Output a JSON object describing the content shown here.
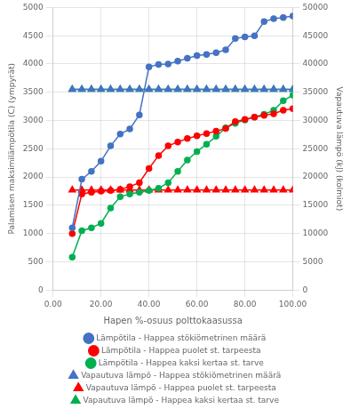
{
  "chart_data": {
    "type": "line",
    "xlabel": "Hapen %-osuus polttokaasussа",
    "ylabel": "Palamisen maksimilämpötila (C) (ympyrät)",
    "y2label": "Vapautuva lämpö (kJ) (kolmiot)",
    "x": [
      8,
      12,
      16,
      20,
      24,
      28,
      32,
      36,
      40,
      44,
      48,
      52,
      56,
      60,
      64,
      68,
      72,
      76,
      80,
      84,
      88,
      92,
      96,
      100
    ],
    "xlim": [
      0,
      100
    ],
    "xticks": [
      {
        "value": 0,
        "label": "0.00"
      },
      {
        "value": 20,
        "label": "20.00"
      },
      {
        "value": 40,
        "label": "40.00"
      },
      {
        "value": 60,
        "label": "60.00"
      },
      {
        "value": 80,
        "label": "80.00"
      },
      {
        "value": 100,
        "label": "100.00"
      }
    ],
    "ylim": [
      0,
      5000
    ],
    "yticks": [
      0,
      500,
      1000,
      1500,
      2000,
      2500,
      3000,
      3500,
      4000,
      4500,
      5000
    ],
    "y2lim": [
      0,
      50000
    ],
    "y2ticks": [
      0,
      5000,
      10000,
      15000,
      20000,
      25000,
      30000,
      35000,
      40000,
      45000,
      50000
    ],
    "grid": true,
    "legend": "bottom",
    "series": [
      {
        "name": "Lämpötila - Happea stökiömetrinen määrä",
        "color": "#4472C4",
        "marker": "circle",
        "values": [
          1100,
          1960,
          2100,
          2280,
          2550,
          2760,
          2850,
          3100,
          3950,
          3990,
          4000,
          4050,
          4100,
          4150,
          4170,
          4200,
          4250,
          4450,
          4480,
          4500,
          4750,
          4800,
          4820,
          4850
        ]
      },
      {
        "name": "Lämpötila - Happea puolet st. tarpeesta",
        "color": "#FF0000",
        "marker": "circle",
        "values": [
          1000,
          1700,
          1730,
          1750,
          1760,
          1780,
          1830,
          1900,
          2150,
          2380,
          2550,
          2620,
          2680,
          2730,
          2770,
          2810,
          2860,
          2980,
          3020,
          3060,
          3090,
          3120,
          3180,
          3210
        ]
      },
      {
        "name": "Lämpötila - Happea kaksi kertaa st. tarve",
        "color": "#00B050",
        "marker": "circle",
        "values": [
          580,
          1050,
          1100,
          1180,
          1450,
          1650,
          1700,
          1730,
          1760,
          1800,
          1900,
          2100,
          2300,
          2450,
          2580,
          2720,
          2870,
          2950,
          3010,
          3060,
          3110,
          3180,
          3350,
          3450
        ]
      },
      {
        "name": "Vapautuva lämpö - Happea stökiömetrinen määrä",
        "color": "#4472C4",
        "marker": "triangle",
        "axis": "y2",
        "values": [
          35500,
          35500,
          35500,
          35500,
          35500,
          35500,
          35500,
          35500,
          35500,
          35500,
          35500,
          35500,
          35500,
          35500,
          35500,
          35500,
          35500,
          35500,
          35500,
          35500,
          35500,
          35500,
          35500,
          35500
        ]
      },
      {
        "name": "Vapautuva lämpö - Happea puolet st. tarpeesta",
        "color": "#FF0000",
        "marker": "triangle",
        "axis": "y2",
        "values": [
          17700,
          17700,
          17700,
          17700,
          17700,
          17700,
          17700,
          17700,
          17700,
          17700,
          17700,
          17700,
          17700,
          17700,
          17700,
          17700,
          17700,
          17700,
          17700,
          17700,
          17700,
          17700,
          17700,
          17700
        ]
      },
      {
        "name": "Vapautuva lämpö - Happea kaksi kertaa st. tarve",
        "color": "#00B050",
        "marker": "triangle",
        "axis": "y2",
        "values": [
          35500,
          35500,
          35500,
          35500,
          35500,
          35500,
          35500,
          35500,
          35500,
          35500,
          35500,
          35500,
          35500,
          35500,
          35500,
          35500,
          35500,
          35500,
          35500,
          35500,
          35500,
          35500,
          35500,
          35500
        ]
      }
    ]
  }
}
